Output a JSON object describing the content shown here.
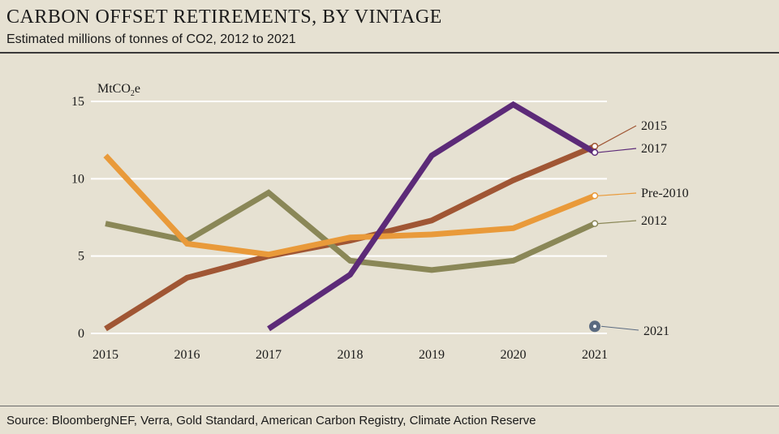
{
  "title": "CARBON OFFSET RETIREMENTS, BY VINTAGE",
  "subtitle": "Estimated millions of tonnes of CO2, 2012 to 2021",
  "source": "Source: BloombergNEF, Verra, Gold Standard, American Carbon Registry, Climate Action Reserve",
  "chart_data": {
    "type": "line",
    "unit_label": {
      "base": "MtCO",
      "sub": "2",
      "tail": "e"
    },
    "x": [
      2015,
      2016,
      2017,
      2018,
      2019,
      2020,
      2021
    ],
    "x_tick_labels": [
      "2015",
      "2016",
      "2017",
      "2018",
      "2019",
      "2020",
      "2021"
    ],
    "y_ticks": [
      0,
      5,
      10,
      15
    ],
    "y_tick_labels": [
      "0",
      "5",
      "10",
      "15"
    ],
    "ylim": [
      0,
      15.5
    ],
    "grid": "horizontal",
    "legend": "right (inline labels at line ends)",
    "series": [
      {
        "name": "2012",
        "color": "#8a8757",
        "values": [
          7.1,
          6.0,
          9.1,
          4.7,
          4.1,
          4.7,
          7.1
        ]
      },
      {
        "name": "Pre-2010",
        "color": "#e99a3a",
        "values": [
          11.5,
          5.8,
          5.1,
          6.2,
          6.4,
          6.8,
          8.9
        ]
      },
      {
        "name": "2015",
        "color": "#a05634",
        "values": [
          0.3,
          3.6,
          5.0,
          6.0,
          7.3,
          9.9,
          12.1
        ]
      },
      {
        "name": "2017",
        "color": "#5c2a78",
        "values": [
          null,
          null,
          0.3,
          3.8,
          11.5,
          14.8,
          11.7
        ]
      },
      {
        "name": "2021",
        "color": "#5a6a80",
        "values": [
          null,
          null,
          null,
          null,
          null,
          null,
          0.3
        ]
      }
    ]
  }
}
